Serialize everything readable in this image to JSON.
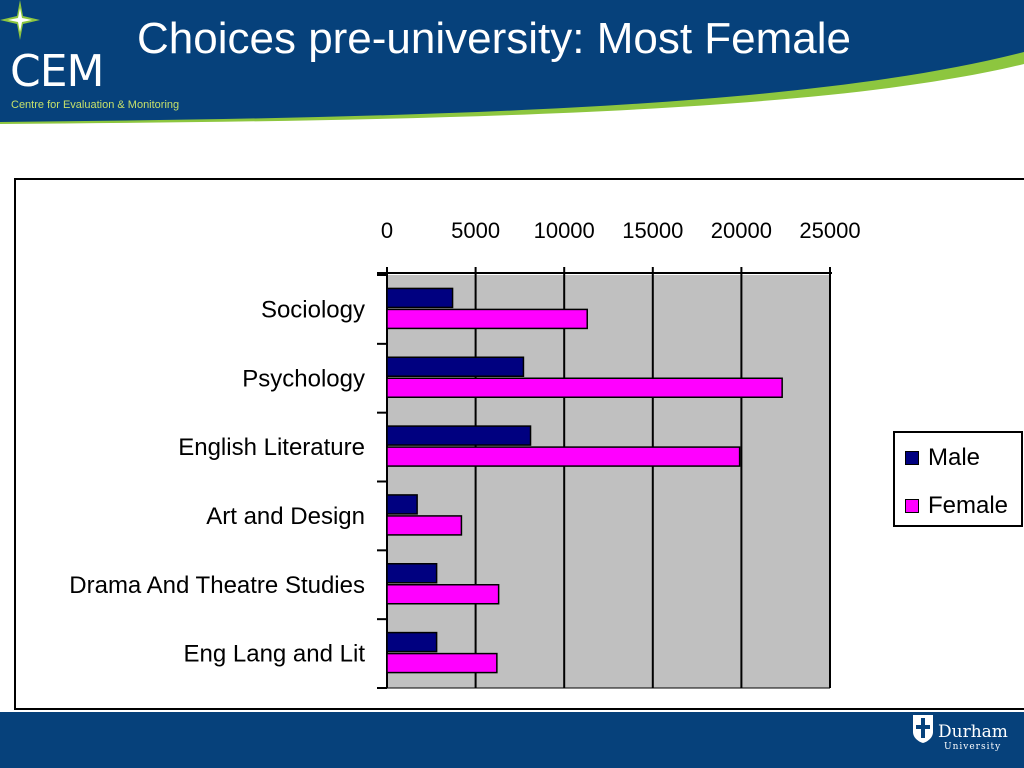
{
  "header": {
    "title": "Choices pre-university: Most Female",
    "logo_text": "CEM",
    "logo_subtitle": "Centre for Evaluation & Monitoring",
    "colors": {
      "navy": "#06417b",
      "green": "#8dc63f"
    }
  },
  "footer": {
    "brand": "Durham",
    "brand_sub": "University"
  },
  "chart_data": {
    "type": "bar",
    "orientation": "horizontal",
    "categories": [
      "Sociology",
      "Psychology",
      "English Literature",
      "Art and Design",
      "Drama And Theatre Studies",
      "Eng Lang and Lit"
    ],
    "series": [
      {
        "name": "Male",
        "color": "#000080",
        "values": [
          3700,
          7700,
          8100,
          1700,
          2800,
          2800
        ]
      },
      {
        "name": "Female",
        "color": "#ff00ff",
        "values": [
          11300,
          22300,
          19900,
          4200,
          6300,
          6200
        ]
      }
    ],
    "x_ticks": [
      "0",
      "5000",
      "10000",
      "15000",
      "20000",
      "25000"
    ],
    "xlim": [
      0,
      25000
    ],
    "x_axis_position": "top",
    "grid": true,
    "plot_background": "#c0c0c0",
    "legend_position": "right"
  }
}
